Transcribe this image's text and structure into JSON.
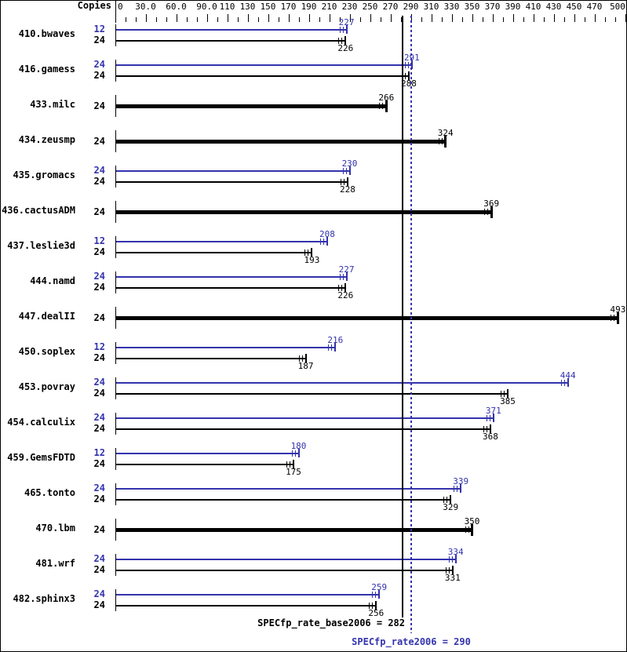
{
  "header": {
    "copies_label": "Copies"
  },
  "axis": {
    "min": 0,
    "max": 510,
    "minor_tick_step": 10,
    "labeled_ticks": [
      "0",
      "30.0",
      "60.0",
      "90.0",
      "110",
      "130",
      "150",
      "170",
      "190",
      "210",
      "230",
      "250",
      "270",
      "290",
      "310",
      "330",
      "350",
      "370",
      "390",
      "410",
      "430",
      "450",
      "470",
      "500"
    ]
  },
  "colors": {
    "peak_blue": "#3333ad",
    "base_black": "#000000",
    "background": "#ffffff"
  },
  "summary": {
    "base_text": "SPECfp_rate_base2006 = 282",
    "base_value": 282,
    "peak_text": "SPECfp_rate2006 = 290",
    "peak_value": 290
  },
  "benchmarks": [
    {
      "name": "410.bwaves",
      "bars": [
        {
          "copies": "12",
          "series": "peak",
          "value": 227
        },
        {
          "copies": "24",
          "series": "base",
          "value": 226
        }
      ]
    },
    {
      "name": "416.gamess",
      "bars": [
        {
          "copies": "24",
          "series": "peak",
          "value": 291
        },
        {
          "copies": "24",
          "series": "base",
          "value": 288
        }
      ]
    },
    {
      "name": "433.milc",
      "bars": [
        {
          "copies": "24",
          "series": "base",
          "value": 266
        }
      ]
    },
    {
      "name": "434.zeusmp",
      "bars": [
        {
          "copies": "24",
          "series": "base",
          "value": 324
        }
      ]
    },
    {
      "name": "435.gromacs",
      "bars": [
        {
          "copies": "24",
          "series": "peak",
          "value": 230
        },
        {
          "copies": "24",
          "series": "base",
          "value": 228
        }
      ]
    },
    {
      "name": "436.cactusADM",
      "bars": [
        {
          "copies": "24",
          "series": "base",
          "value": 369
        }
      ]
    },
    {
      "name": "437.leslie3d",
      "bars": [
        {
          "copies": "12",
          "series": "peak",
          "value": 208
        },
        {
          "copies": "24",
          "series": "base",
          "value": 193
        }
      ]
    },
    {
      "name": "444.namd",
      "bars": [
        {
          "copies": "24",
          "series": "peak",
          "value": 227
        },
        {
          "copies": "24",
          "series": "base",
          "value": 226
        }
      ]
    },
    {
      "name": "447.dealII",
      "bars": [
        {
          "copies": "24",
          "series": "base",
          "value": 493
        }
      ]
    },
    {
      "name": "450.soplex",
      "bars": [
        {
          "copies": "12",
          "series": "peak",
          "value": 216
        },
        {
          "copies": "24",
          "series": "base",
          "value": 187
        }
      ]
    },
    {
      "name": "453.povray",
      "bars": [
        {
          "copies": "24",
          "series": "peak",
          "value": 444
        },
        {
          "copies": "24",
          "series": "base",
          "value": 385
        }
      ]
    },
    {
      "name": "454.calculix",
      "bars": [
        {
          "copies": "24",
          "series": "peak",
          "value": 371
        },
        {
          "copies": "24",
          "series": "base",
          "value": 368
        }
      ]
    },
    {
      "name": "459.GemsFDTD",
      "bars": [
        {
          "copies": "12",
          "series": "peak",
          "value": 180
        },
        {
          "copies": "24",
          "series": "base",
          "value": 175
        }
      ]
    },
    {
      "name": "465.tonto",
      "bars": [
        {
          "copies": "24",
          "series": "peak",
          "value": 339
        },
        {
          "copies": "24",
          "series": "base",
          "value": 329
        }
      ]
    },
    {
      "name": "470.lbm",
      "bars": [
        {
          "copies": "24",
          "series": "base",
          "value": 350
        }
      ]
    },
    {
      "name": "481.wrf",
      "bars": [
        {
          "copies": "24",
          "series": "peak",
          "value": 334
        },
        {
          "copies": "24",
          "series": "base",
          "value": 331
        }
      ]
    },
    {
      "name": "482.sphinx3",
      "bars": [
        {
          "copies": "24",
          "series": "peak",
          "value": 259
        },
        {
          "copies": "24",
          "series": "base",
          "value": 256
        }
      ]
    }
  ],
  "chart_data": {
    "type": "bar",
    "orientation": "horizontal",
    "title": "",
    "xlabel": "",
    "ylabel": "Copies",
    "xlim": [
      0,
      510
    ],
    "x_ticks_labeled": [
      0,
      30,
      60,
      90,
      110,
      130,
      150,
      170,
      190,
      210,
      230,
      250,
      270,
      290,
      310,
      330,
      350,
      370,
      390,
      410,
      430,
      450,
      470,
      500
    ],
    "x_minor_tick_step": 10,
    "grid": false,
    "legend_position": "none",
    "categories": [
      "410.bwaves",
      "416.gamess",
      "433.milc",
      "434.zeusmp",
      "435.gromacs",
      "436.cactusADM",
      "437.leslie3d",
      "444.namd",
      "447.dealII",
      "450.soplex",
      "453.povray",
      "454.calculix",
      "459.GemsFDTD",
      "465.tonto",
      "470.lbm",
      "481.wrf",
      "482.sphinx3"
    ],
    "series": [
      {
        "name": "SPECfp_rate2006 (peak)",
        "color": "#3333ad",
        "copies": [
          12,
          24,
          null,
          null,
          24,
          null,
          12,
          24,
          null,
          12,
          24,
          24,
          12,
          24,
          null,
          24,
          24
        ],
        "values": [
          227,
          291,
          null,
          null,
          230,
          null,
          208,
          227,
          null,
          216,
          444,
          371,
          180,
          339,
          null,
          334,
          259
        ]
      },
      {
        "name": "SPECfp_rate_base2006 (base)",
        "color": "#000000",
        "copies": [
          24,
          24,
          24,
          24,
          24,
          24,
          24,
          24,
          24,
          24,
          24,
          24,
          24,
          24,
          24,
          24,
          24
        ],
        "values": [
          226,
          288,
          266,
          324,
          228,
          369,
          193,
          226,
          493,
          187,
          385,
          368,
          175,
          329,
          350,
          331,
          256
        ]
      }
    ],
    "annotations": [
      {
        "label": "SPECfp_rate_base2006 = 282",
        "value": 282,
        "style": "solid-black-vertical-line"
      },
      {
        "label": "SPECfp_rate2006 = 290",
        "value": 290,
        "style": "dotted-blue-vertical-line"
      }
    ]
  }
}
